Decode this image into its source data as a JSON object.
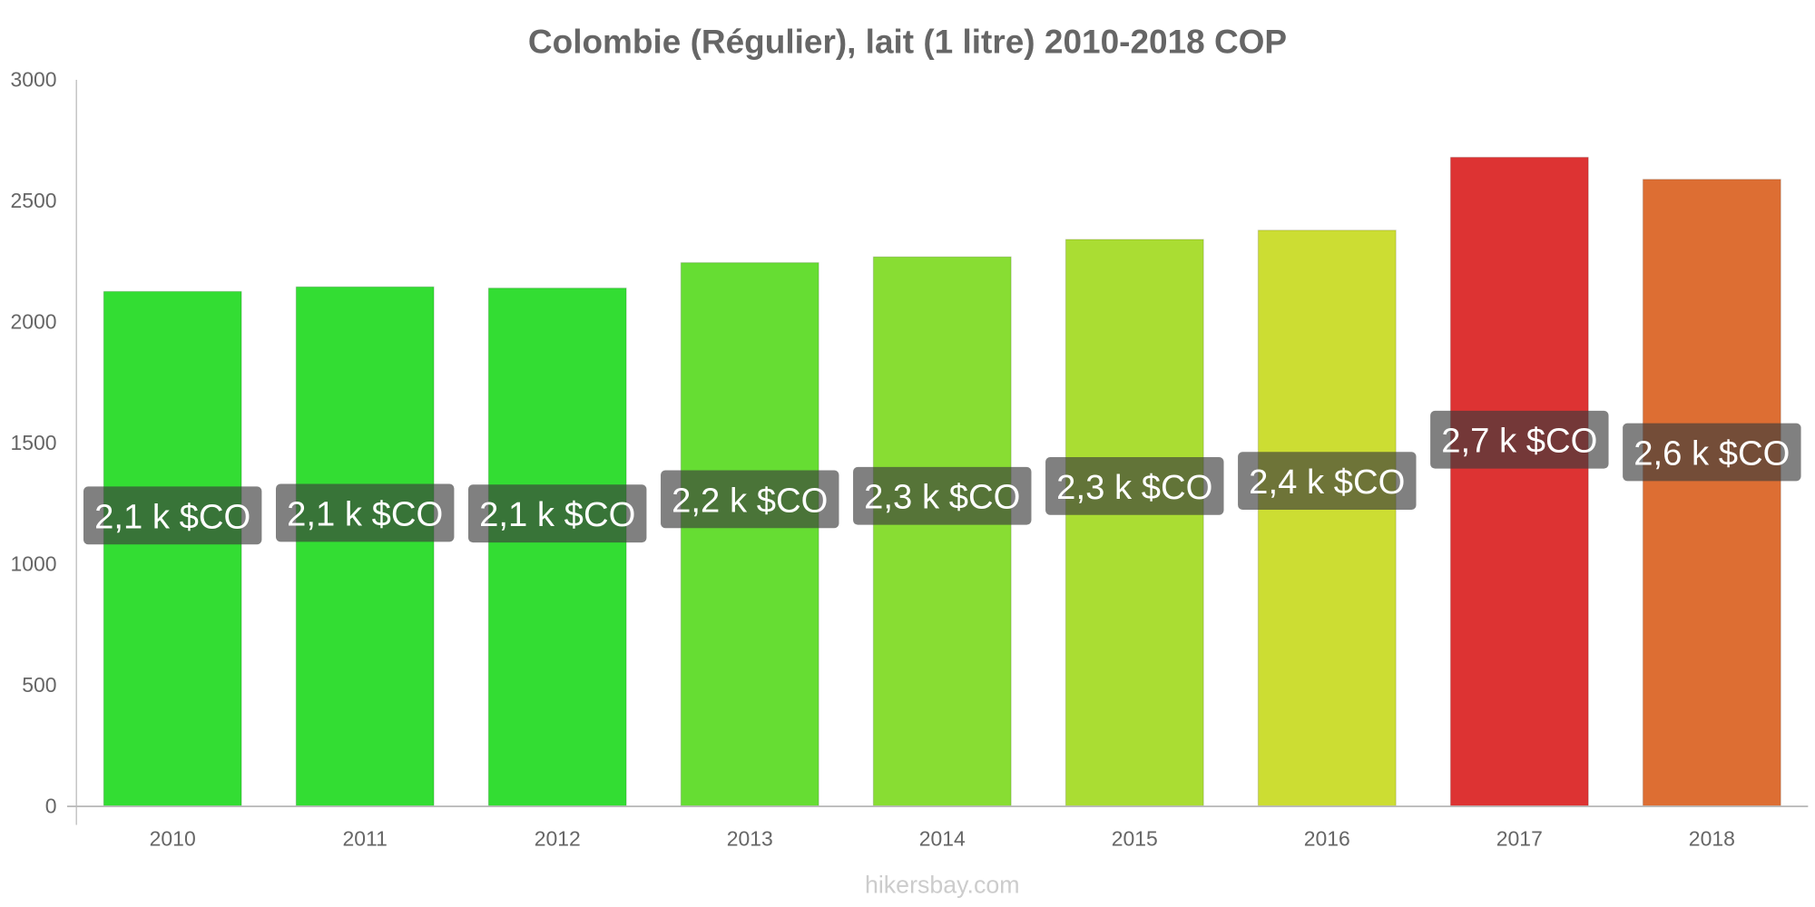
{
  "chart_data": {
    "type": "bar",
    "title": "Colombie (Régulier), lait (1 litre) 2010-2018 COP",
    "xlabel": "",
    "ylabel": "",
    "ylim": [
      0,
      3000
    ],
    "yticks": [
      "0",
      "500",
      "1000",
      "1500",
      "2000",
      "2500",
      "3000"
    ],
    "ytick_values": [
      0,
      500,
      1000,
      1500,
      2000,
      2500,
      3000
    ],
    "categories": [
      "2010",
      "2011",
      "2012",
      "2013",
      "2014",
      "2015",
      "2016",
      "2017",
      "2018"
    ],
    "values": [
      2126,
      2145,
      2140,
      2245,
      2269,
      2341,
      2379,
      2680,
      2589
    ],
    "data_labels": [
      "2,1 k $CO",
      "2,1 k $CO",
      "2,1 k $CO",
      "2,2 k $CO",
      "2,3 k $CO",
      "2,3 k $CO",
      "2,4 k $CO",
      "2,7 k $CO",
      "2,6 k $CO"
    ],
    "colors": [
      "#33dd33",
      "#33dd33",
      "#33dd33",
      "#66dd33",
      "#88dd33",
      "#aadd33",
      "#ccdd33",
      "#dd3333",
      "#dd6e33"
    ],
    "grid": false,
    "legend": "none"
  },
  "watermark": "hikersbay.com"
}
